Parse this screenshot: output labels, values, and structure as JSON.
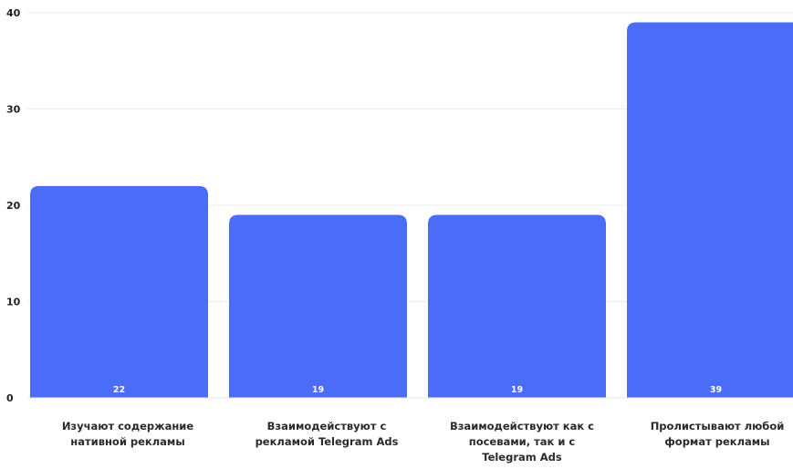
{
  "chart_data": {
    "type": "bar",
    "title": "",
    "xlabel": "",
    "ylabel": "",
    "categories": [
      "Изучают содержание нативной рекламы",
      "Взаимодействуют с рекламой Telegram Ads",
      "Взаимодействуют как с посевами, так и с Telegram Ads",
      "Пролистывают любой формат рекламы"
    ],
    "category_lines": [
      [
        "Изучают содержание",
        "нативной рекламы"
      ],
      [
        "Взаимодействуют с",
        "рекламой Telegram Ads"
      ],
      [
        "Взаимодействуют как с",
        "посевами, так и с",
        "Telegram Ads"
      ],
      [
        "Пролистывают любой",
        "формат рекламы"
      ]
    ],
    "values": [
      22,
      19,
      19,
      39
    ],
    "data_labels": [
      "22",
      "19",
      "19",
      "39"
    ],
    "y_ticks": [
      0,
      10,
      20,
      30,
      40
    ],
    "y_tick_labels": [
      "0",
      "10",
      "20",
      "30",
      "40"
    ],
    "ylim": [
      0,
      40
    ],
    "grid": true,
    "legend": "none",
    "colors": {
      "bar": "#4a6cf7",
      "grid": "#ececec",
      "axis_text": "#1f1f1f",
      "data_label": "#ffffff"
    }
  }
}
